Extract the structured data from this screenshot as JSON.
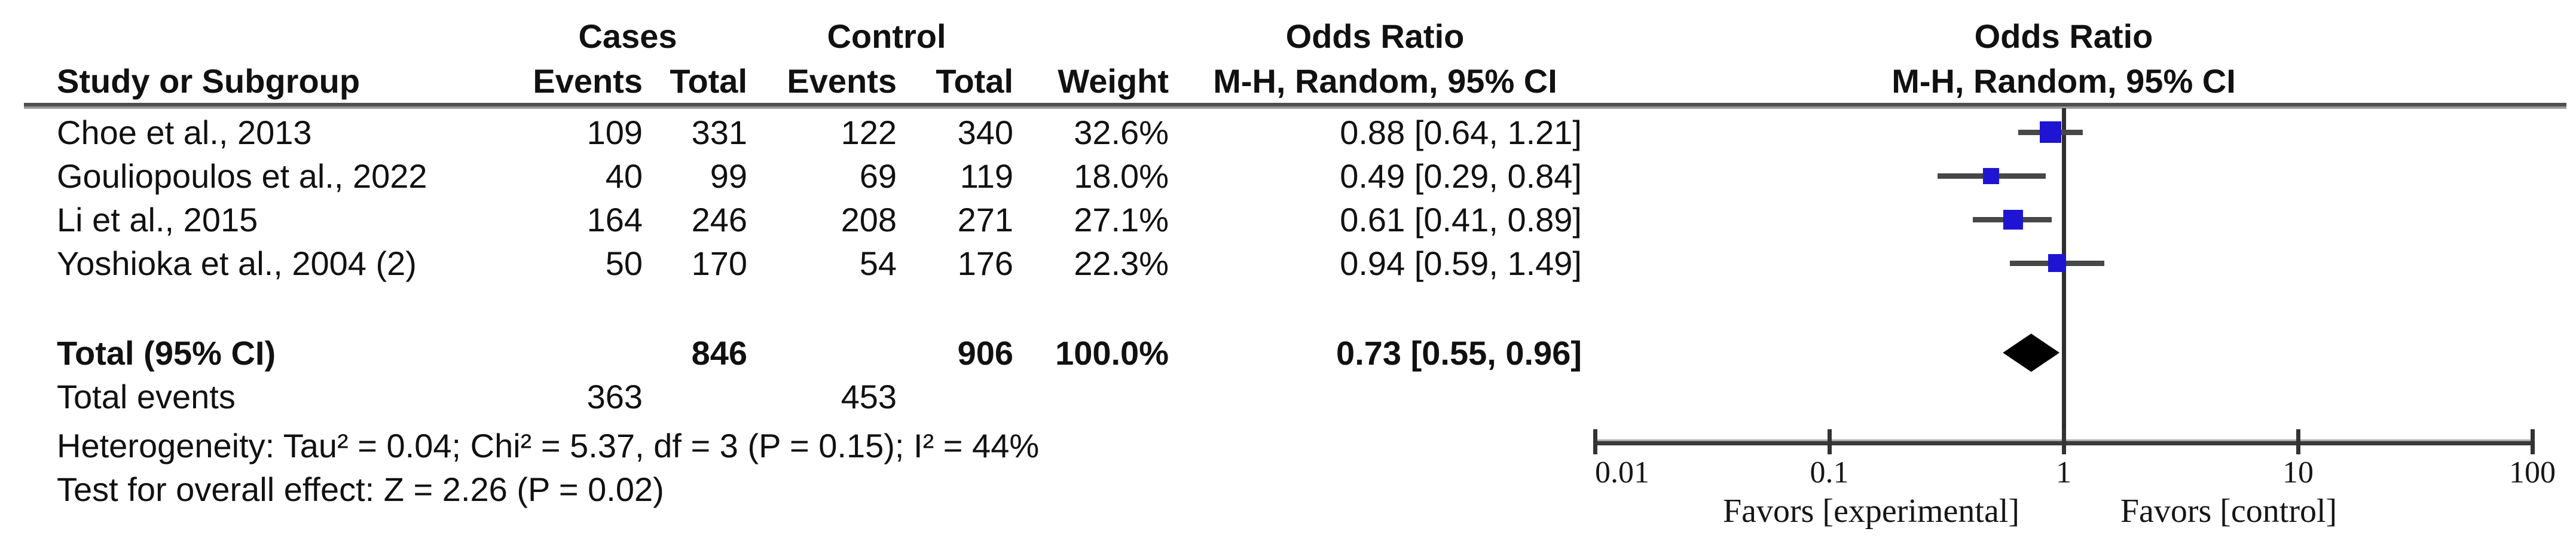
{
  "table": {
    "group1_label": "Cases",
    "group2_label": "Control",
    "or_header": "Odds Ratio",
    "col_study": "Study or Subgroup",
    "col_events": "Events",
    "col_total": "Total",
    "col_weight": "Weight",
    "method_header": "M-H, Random, 95% CI",
    "rows": [
      {
        "study": "Choe et al., 2013",
        "e1": "109",
        "t1": "331",
        "e2": "122",
        "t2": "340",
        "weight": "32.6%",
        "ci": "0.88 [0.64, 1.21]"
      },
      {
        "study": "Gouliopoulos et al., 2022",
        "e1": "40",
        "t1": "99",
        "e2": "69",
        "t2": "119",
        "weight": "18.0%",
        "ci": "0.49 [0.29, 0.84]"
      },
      {
        "study": "Li et al., 2015",
        "e1": "164",
        "t1": "246",
        "e2": "208",
        "t2": "271",
        "weight": "27.1%",
        "ci": "0.61 [0.41, 0.89]"
      },
      {
        "study": "Yoshioka et al., 2004 (2)",
        "e1": "50",
        "t1": "170",
        "e2": "54",
        "t2": "176",
        "weight": "22.3%",
        "ci": "0.94 [0.59, 1.49]"
      }
    ],
    "total": {
      "label": "Total (95% CI)",
      "t1": "846",
      "t2": "906",
      "weight": "100.0%",
      "ci": "0.73 [0.55, 0.96]"
    },
    "total_events": {
      "label": "Total events",
      "e1": "363",
      "e2": "453"
    },
    "heterogeneity": "Heterogeneity: Tau² = 0.04; Chi² = 5.37, df = 3 (P = 0.15); I² = 44%",
    "overall_effect": "Test for overall effect: Z = 2.26 (P = 0.02)"
  },
  "plot": {
    "header1": "Odds Ratio",
    "header2": "M-H, Random, 95% CI",
    "favors_left": "Favors [experimental]",
    "favors_right": "Favors [control]",
    "tick_labels": [
      "0.01",
      "0.1",
      "1",
      "10",
      "100"
    ]
  },
  "chart_data": {
    "type": "scatter",
    "variant": "forest-plot",
    "effect_measure": "Odds Ratio, M-H, Random, 95% CI",
    "xscale": "log",
    "xlim": [
      0.01,
      100
    ],
    "xticks": [
      0.01,
      0.1,
      1,
      10,
      100
    ],
    "null_line": 1,
    "studies": [
      {
        "name": "Choe et al., 2013",
        "events_cases": 109,
        "total_cases": 331,
        "events_control": 122,
        "total_control": 340,
        "weight_pct": 32.6,
        "or": 0.88,
        "ci_low": 0.64,
        "ci_high": 1.21
      },
      {
        "name": "Gouliopoulos et al., 2022",
        "events_cases": 40,
        "total_cases": 99,
        "events_control": 69,
        "total_control": 119,
        "weight_pct": 18.0,
        "or": 0.49,
        "ci_low": 0.29,
        "ci_high": 0.84
      },
      {
        "name": "Li et al., 2015",
        "events_cases": 164,
        "total_cases": 246,
        "events_control": 208,
        "total_control": 271,
        "weight_pct": 27.1,
        "or": 0.61,
        "ci_low": 0.41,
        "ci_high": 0.89
      },
      {
        "name": "Yoshioka et al., 2004 (2)",
        "events_cases": 50,
        "total_cases": 170,
        "events_control": 54,
        "total_control": 176,
        "weight_pct": 22.3,
        "or": 0.94,
        "ci_low": 0.59,
        "ci_high": 1.49
      }
    ],
    "overall": {
      "label": "Total (95% CI)",
      "total_cases": 846,
      "total_control": 906,
      "weight_pct": 100.0,
      "or": 0.73,
      "ci_low": 0.55,
      "ci_high": 0.96
    },
    "total_events": {
      "cases": 363,
      "control": 453
    },
    "heterogeneity": {
      "tau2": 0.04,
      "chi2": 5.37,
      "df": 3,
      "p": 0.15,
      "i2_pct": 44
    },
    "overall_effect_test": {
      "z": 2.26,
      "p": 0.02
    },
    "annotations": {
      "favors_left": "Favors [experimental]",
      "favors_right": "Favors [control]"
    },
    "colors": {
      "marker": "#1E14D2",
      "diamond": "#000000",
      "ci_line": "#474747"
    },
    "legend": false,
    "grid": false
  }
}
